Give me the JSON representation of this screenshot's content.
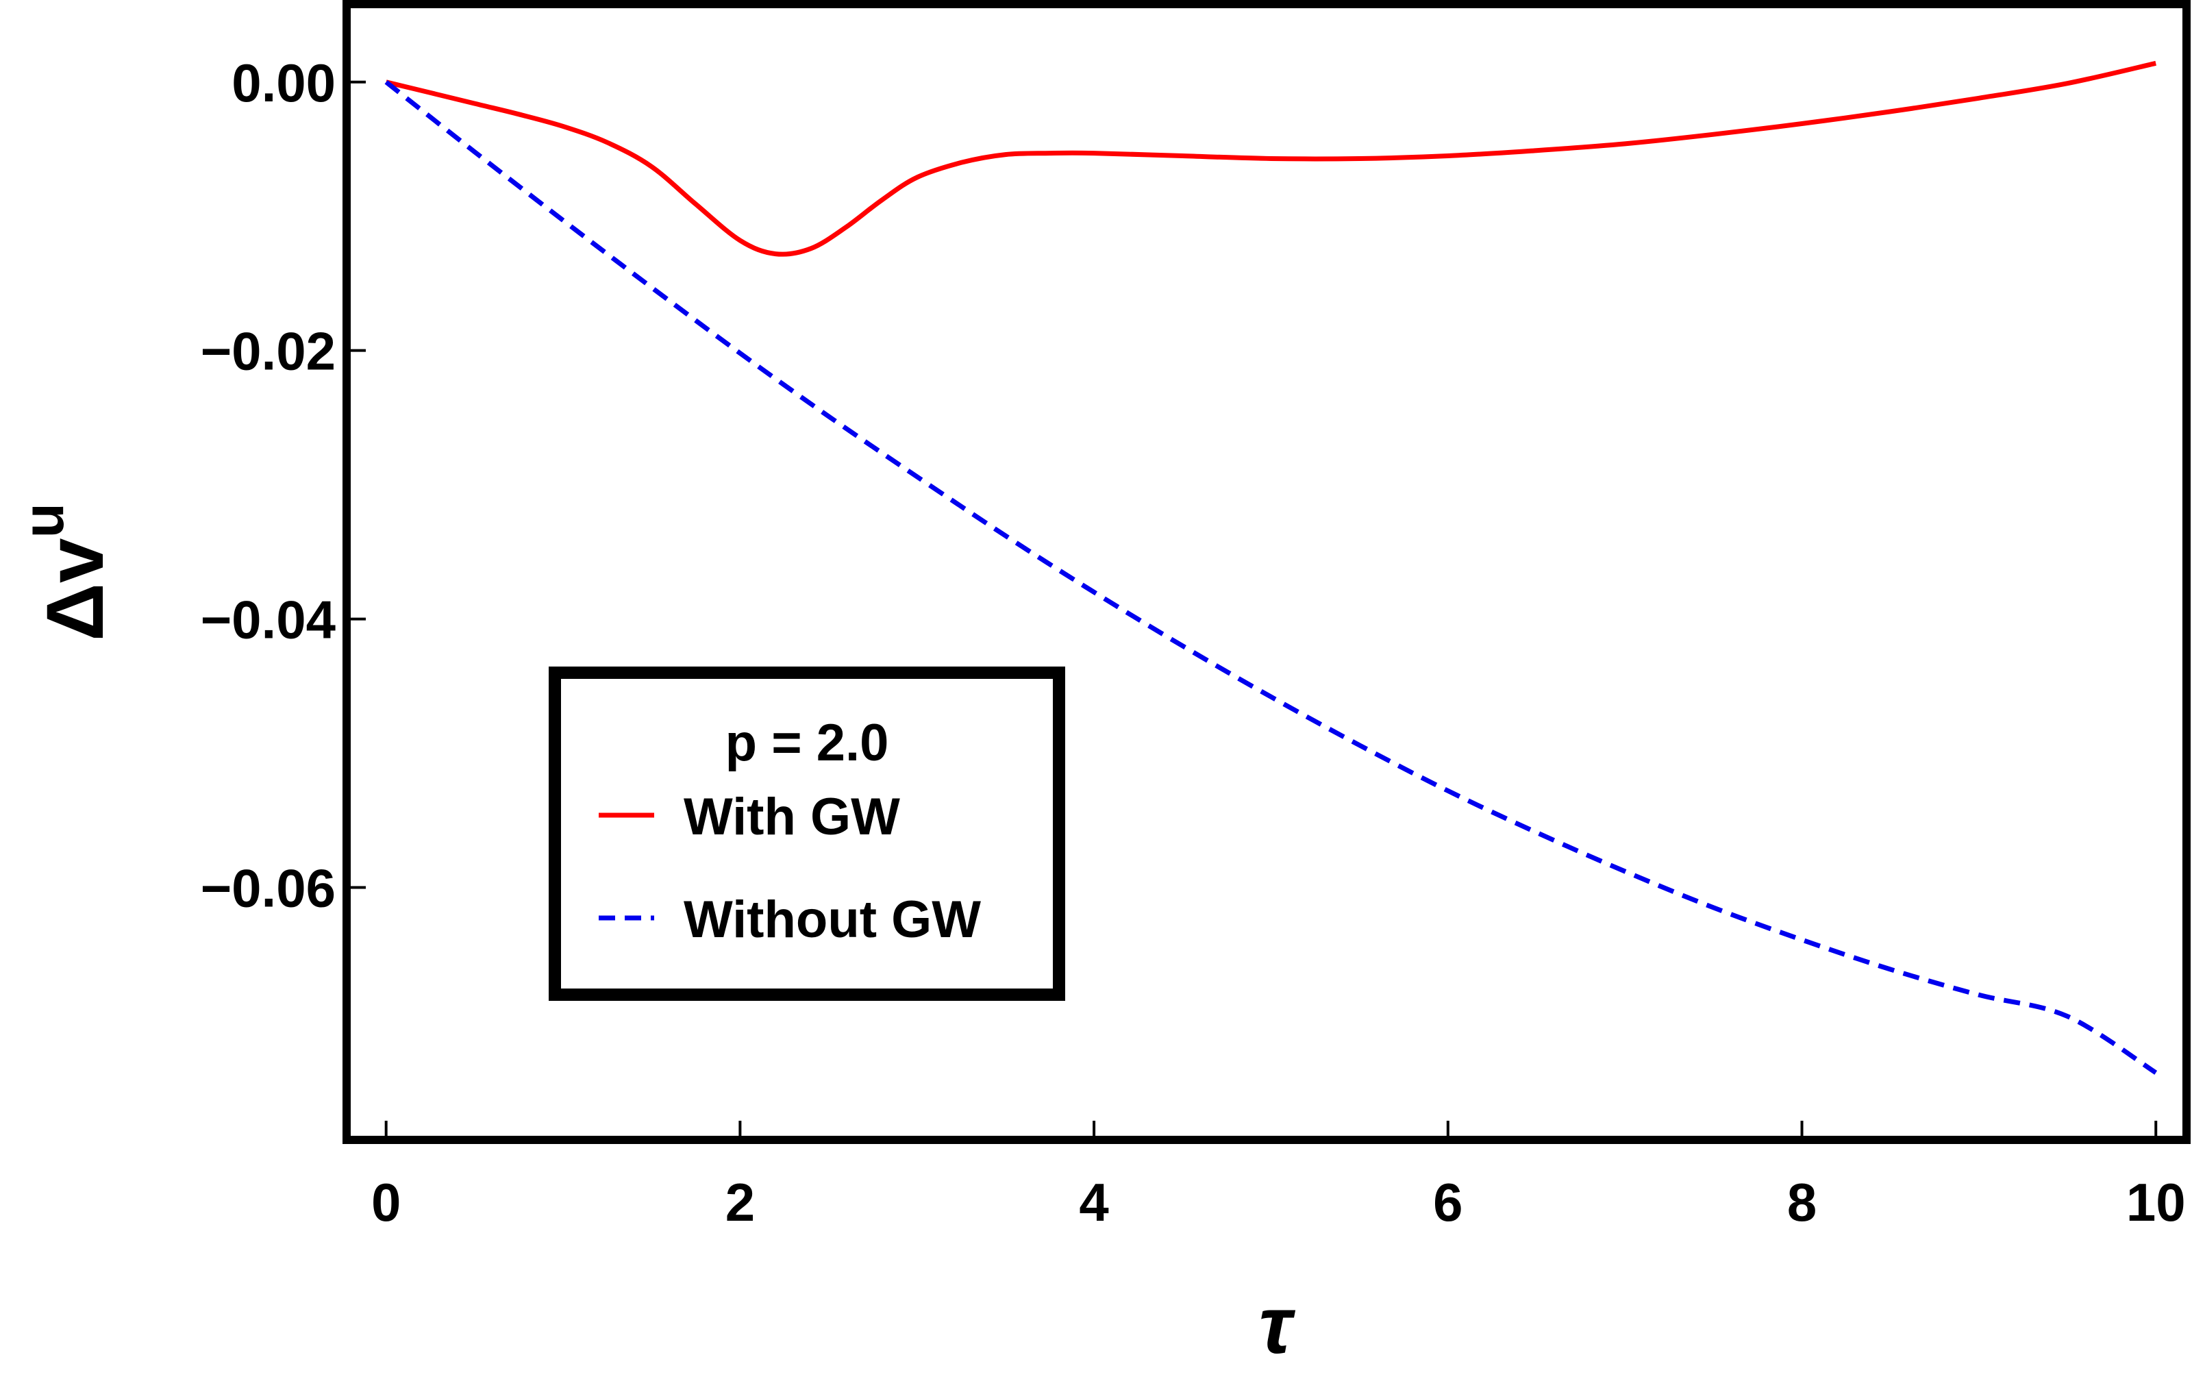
{
  "chart_data": {
    "type": "line",
    "title": "",
    "xlabel": "τ",
    "ylabel": "Δv",
    "ylabel_superscript": "u",
    "xlim": [
      -0.2,
      10.15
    ],
    "ylim": [
      -0.0785,
      0.0055
    ],
    "xticks": [
      0,
      2,
      4,
      6,
      8,
      10
    ],
    "xtick_labels": [
      "0",
      "2",
      "4",
      "6",
      "8",
      "10"
    ],
    "yticks": [
      0.0,
      -0.02,
      -0.04,
      -0.06
    ],
    "ytick_labels": [
      "0.00",
      "−0.02",
      "−0.04",
      "−0.06"
    ],
    "grid": false,
    "legend": {
      "placement": "lower-left",
      "title": "p = 2.0",
      "entries": [
        "With GW",
        "Without GW"
      ]
    },
    "series": [
      {
        "name": "With GW",
        "color": "#ff0000",
        "style": "solid",
        "x": [
          0,
          0.25,
          0.5,
          0.75,
          1.0,
          1.25,
          1.5,
          1.75,
          2.0,
          2.2,
          2.4,
          2.6,
          2.8,
          3.0,
          3.25,
          3.5,
          3.75,
          4.0,
          4.5,
          5.0,
          5.5,
          6.0,
          6.5,
          7.0,
          7.5,
          8.0,
          8.5,
          9.0,
          9.5,
          10.0
        ],
        "y": [
          0.0,
          -0.0008,
          -0.0016,
          -0.0024,
          -0.0033,
          -0.0045,
          -0.0063,
          -0.0091,
          -0.0118,
          -0.0128,
          -0.0124,
          -0.0108,
          -0.0088,
          -0.0071,
          -0.006,
          -0.0054,
          -0.0053,
          -0.0053,
          -0.0055,
          -0.0057,
          -0.0057,
          -0.0055,
          -0.0051,
          -0.0046,
          -0.0039,
          -0.0031,
          -0.0022,
          -0.0012,
          -0.0001,
          0.0014
        ]
      },
      {
        "name": "Without GW",
        "color": "#0000ee",
        "style": "dashed",
        "x": [
          0,
          0.5,
          1.0,
          1.5,
          2.0,
          2.5,
          3.0,
          3.5,
          4.0,
          4.5,
          5.0,
          5.5,
          6.0,
          6.5,
          7.0,
          7.5,
          8.0,
          8.5,
          9.0,
          9.5,
          10.0
        ],
        "y": [
          0.0,
          -0.0052,
          -0.0103,
          -0.0153,
          -0.0202,
          -0.0249,
          -0.0294,
          -0.0338,
          -0.038,
          -0.042,
          -0.0458,
          -0.0494,
          -0.0528,
          -0.0559,
          -0.0588,
          -0.0615,
          -0.0639,
          -0.0661,
          -0.068,
          -0.0696,
          -0.0738
        ]
      }
    ]
  }
}
